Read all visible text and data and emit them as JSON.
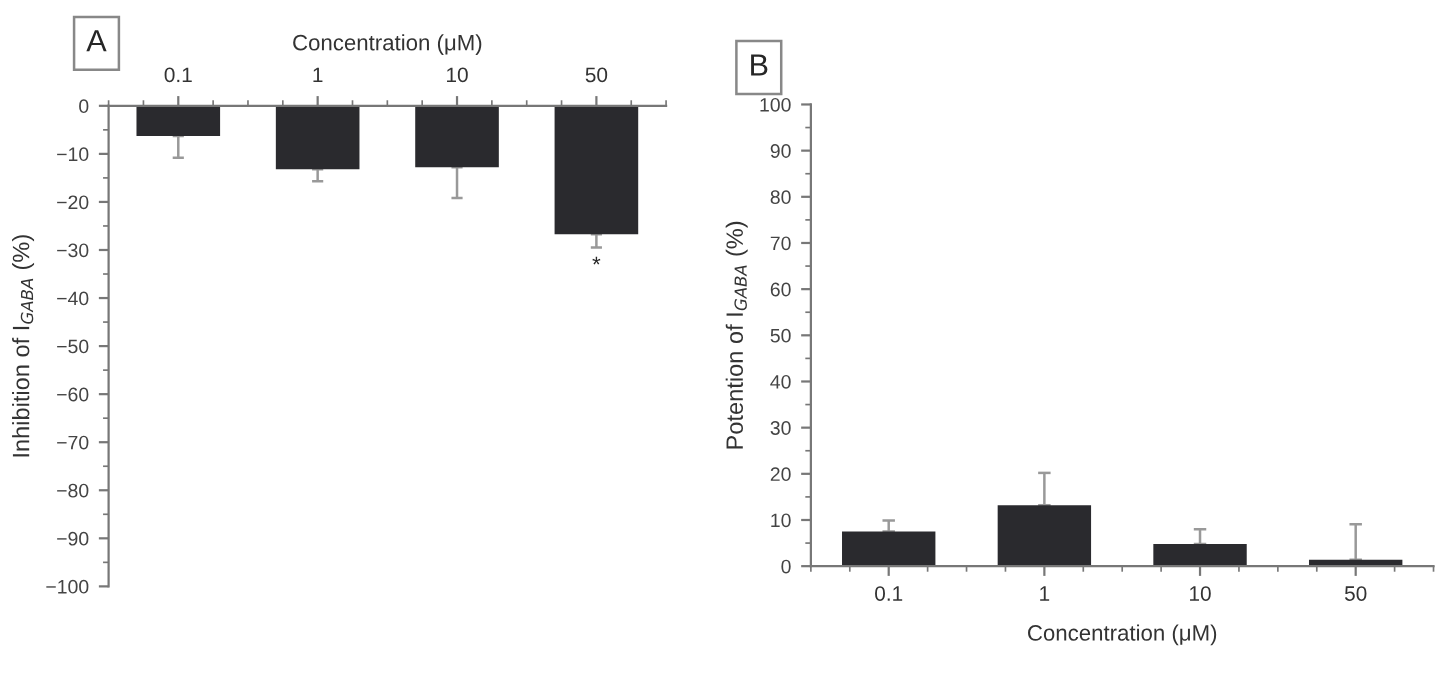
{
  "chart_data": [
    {
      "type": "bar",
      "title": "A",
      "xlabel": "Concentration (μM)",
      "ylabel": "Inhibition of I$_{GABA}$ (%)",
      "categories": [
        "0.1",
        "1",
        "10",
        "50"
      ],
      "values": [
        -6.3,
        -13.2,
        -12.8,
        -26.7
      ],
      "errors": [
        [
          -10.8,
          -6.3
        ],
        [
          -15.7,
          -13.2
        ],
        [
          -19.2,
          -12.8
        ],
        [
          -29.5,
          -26.7
        ]
      ],
      "color": "#2a2a2e",
      "ylim": [
        -100,
        0
      ],
      "yticks": [
        0,
        -10,
        -20,
        -30,
        -40,
        -50,
        -60,
        -70,
        -80,
        -90,
        -100
      ],
      "grid": false,
      "annotations": [
        "*"
      ]
    },
    {
      "type": "bar",
      "title": "B",
      "xlabel": "Concentration (μM)",
      "ylabel": "Potention of I$_{GABA}$ (%)",
      "categories": [
        "0.1",
        "1",
        "10",
        "50"
      ],
      "values": [
        7.5,
        13.2,
        4.8,
        1.4
      ],
      "errors": [
        [
          7.5,
          9.9
        ],
        [
          13.2,
          20.2
        ],
        [
          4.8,
          8.0
        ],
        [
          1.4,
          9.1
        ]
      ],
      "color": "#2a2a2e",
      "ylim": [
        0,
        100
      ],
      "yticks": [
        0,
        10,
        20,
        30,
        40,
        50,
        60,
        70,
        80,
        90,
        100
      ],
      "grid": false
    }
  ]
}
